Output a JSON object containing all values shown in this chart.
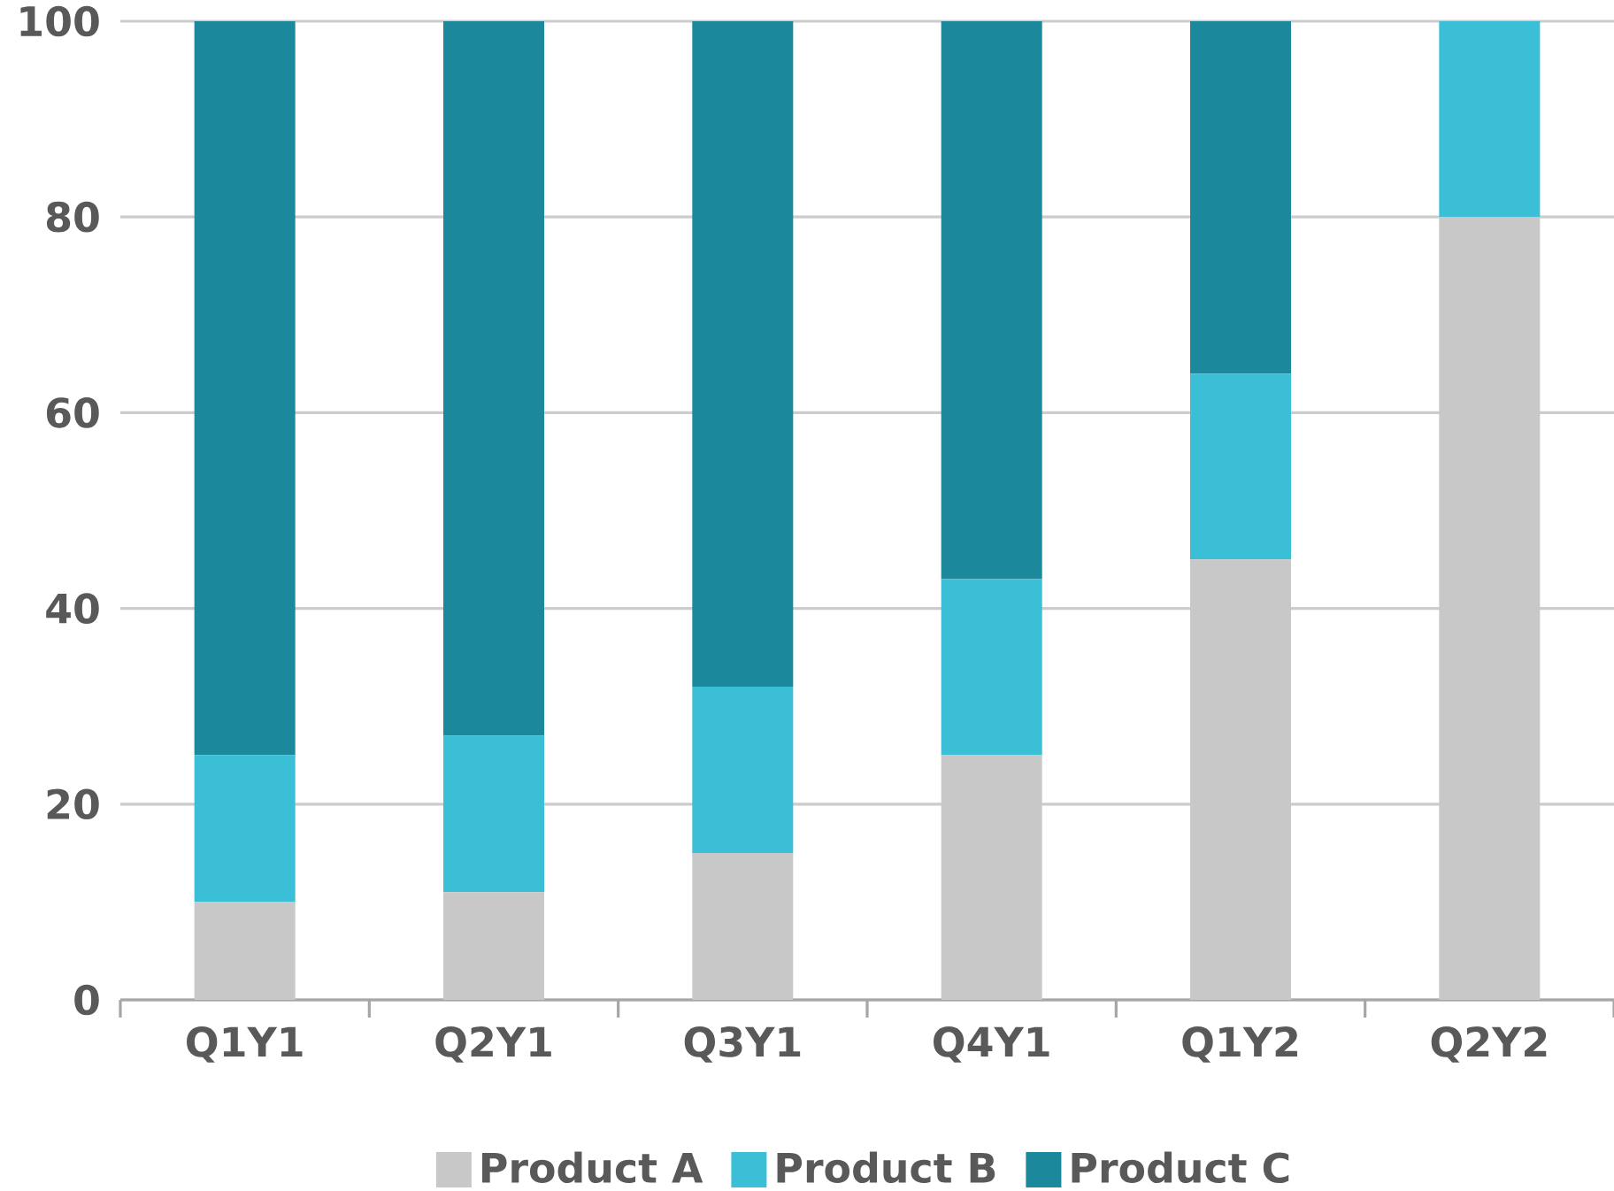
{
  "chart_data": {
    "type": "bar",
    "stacked": true,
    "categories": [
      "Q1Y1",
      "Q2Y1",
      "Q3Y1",
      "Q4Y1",
      "Q1Y2",
      "Q2Y2"
    ],
    "series": [
      {
        "name": "Product A",
        "color": "#c8c8c8",
        "values": [
          10,
          11,
          15,
          25,
          45,
          80
        ]
      },
      {
        "name": "Product B",
        "color": "#3bbfd6",
        "values": [
          15,
          16,
          17,
          18,
          19,
          20
        ]
      },
      {
        "name": "Product C",
        "color": "#1b889b",
        "values": [
          75,
          73,
          68,
          57,
          36,
          0
        ]
      }
    ],
    "ylim": [
      0,
      100
    ],
    "yticks": [
      0,
      20,
      40,
      60,
      80,
      100
    ],
    "grid": "y",
    "legend": "bottom"
  }
}
